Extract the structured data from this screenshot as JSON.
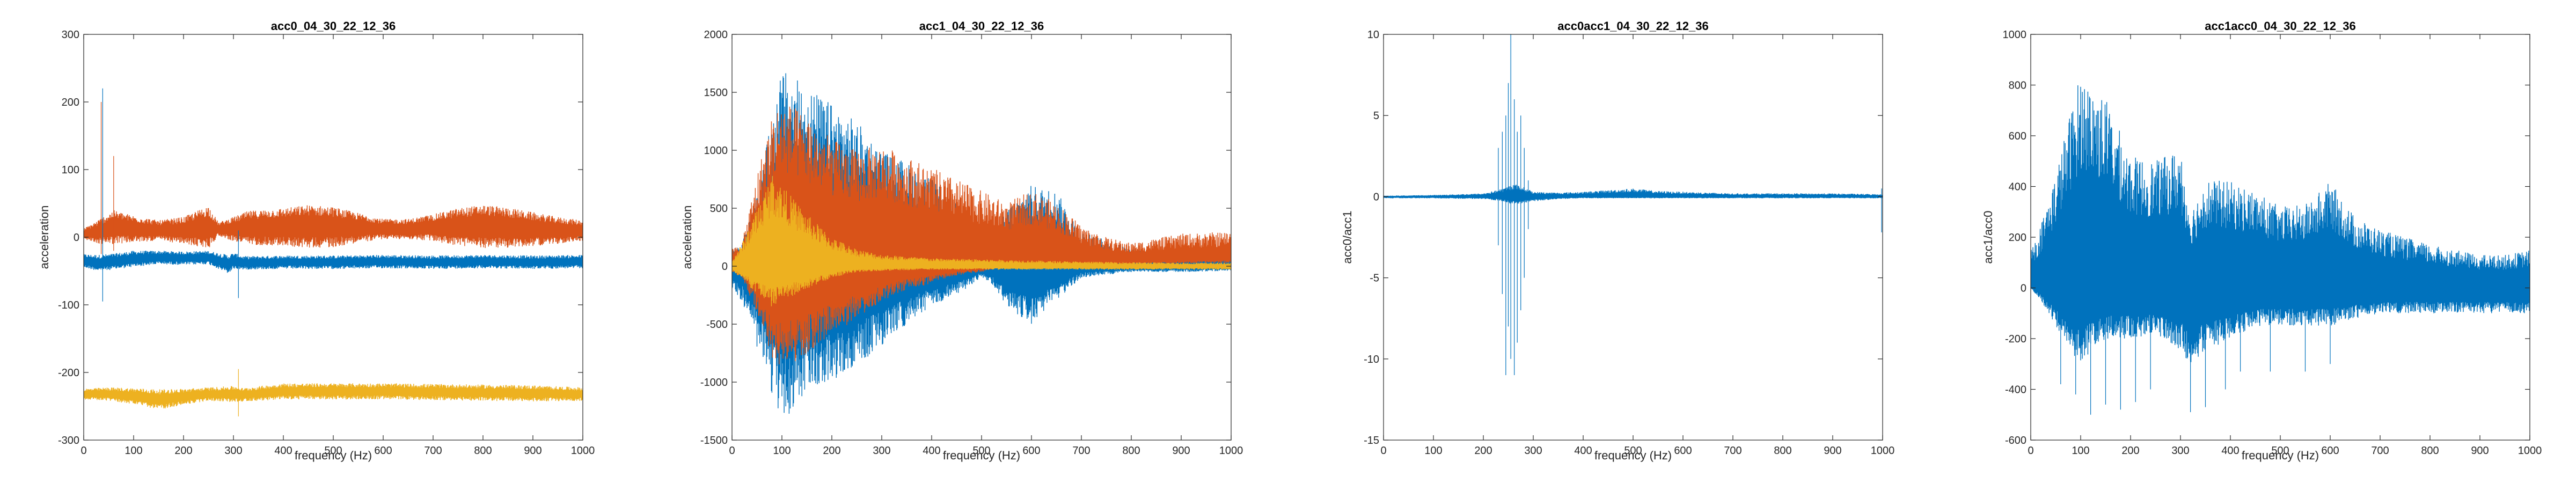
{
  "colors": {
    "series1": "#0072BD",
    "series2": "#D95319",
    "series3": "#EDB120",
    "axis": "#262626",
    "background": "#ffffff"
  },
  "chart_data": [
    {
      "type": "line",
      "title": "acc0_04_30_22_12_36",
      "xlabel": "frequency (Hz)",
      "ylabel": "acceleration",
      "xlim": [
        0,
        1000
      ],
      "ylim": [
        -300,
        300
      ],
      "xticks": [
        0,
        100,
        200,
        300,
        400,
        500,
        600,
        700,
        800,
        900,
        1000
      ],
      "yticks": [
        -300,
        -200,
        -100,
        0,
        100,
        200,
        300
      ],
      "grid": false,
      "legend": "none",
      "series": [
        {
          "color": "#0072BD",
          "style": "dense-noise",
          "x": [
            0,
            30,
            60,
            100,
            150,
            200,
            250,
            290,
            300,
            320,
            400,
            500,
            600,
            700,
            800,
            900,
            1000
          ],
          "center": [
            -35,
            -38,
            -36,
            -32,
            -30,
            -31,
            -30,
            -40,
            -35,
            -38,
            -37,
            -37,
            -36,
            -37,
            -36,
            -37,
            -36
          ],
          "half_width": [
            10,
            12,
            12,
            12,
            10,
            10,
            10,
            14,
            12,
            10,
            10,
            10,
            10,
            10,
            10,
            10,
            10
          ]
        },
        {
          "color": "#D95319",
          "style": "dense-noise",
          "x": [
            0,
            30,
            60,
            100,
            150,
            200,
            250,
            270,
            300,
            330,
            400,
            450,
            500,
            550,
            600,
            650,
            700,
            750,
            800,
            850,
            900,
            950,
            1000
          ],
          "center": [
            5,
            8,
            15,
            12,
            10,
            10,
            15,
            12,
            12,
            14,
            15,
            16,
            15,
            14,
            12,
            12,
            14,
            15,
            16,
            14,
            12,
            10,
            10
          ],
          "half_width": [
            8,
            18,
            25,
            20,
            15,
            20,
            32,
            10,
            18,
            25,
            28,
            32,
            30,
            22,
            15,
            15,
            20,
            28,
            32,
            30,
            25,
            20,
            15
          ]
        },
        {
          "color": "#EDB120",
          "style": "dense-noise",
          "x": [
            0,
            50,
            100,
            150,
            200,
            250,
            300,
            320,
            400,
            500,
            600,
            700,
            800,
            900,
            1000
          ],
          "center": [
            -232,
            -232,
            -235,
            -240,
            -236,
            -232,
            -232,
            -233,
            -228,
            -228,
            -228,
            -229,
            -230,
            -231,
            -232
          ],
          "half_width": [
            8,
            10,
            12,
            15,
            12,
            10,
            12,
            10,
            12,
            12,
            12,
            12,
            12,
            12,
            10
          ]
        }
      ],
      "spikes": [
        {
          "color": "#D95319",
          "x": 35,
          "y": [
            -25,
            200
          ]
        },
        {
          "color": "#0072BD",
          "x": 38,
          "y": [
            -95,
            220
          ]
        },
        {
          "color": "#D95319",
          "x": 60,
          "y": [
            -20,
            120
          ]
        },
        {
          "color": "#0072BD",
          "x": 310,
          "y": [
            -90,
            10
          ]
        },
        {
          "color": "#EDB120",
          "x": 310,
          "y": [
            -265,
            -195
          ]
        }
      ]
    },
    {
      "type": "line",
      "title": "acc1_04_30_22_12_36",
      "xlabel": "frequency (Hz)",
      "ylabel": "acceleration",
      "xlim": [
        0,
        1000
      ],
      "ylim": [
        -1500,
        2000
      ],
      "xticks": [
        0,
        100,
        200,
        300,
        400,
        500,
        600,
        700,
        800,
        900,
        1000
      ],
      "yticks": [
        -1500,
        -1000,
        -500,
        0,
        500,
        1000,
        1500,
        2000
      ],
      "grid": false,
      "legend": "none",
      "series": [
        {
          "color": "#0072BD",
          "style": "envelope",
          "x": [
            0,
            20,
            50,
            80,
            100,
            150,
            200,
            250,
            300,
            350,
            400,
            450,
            500,
            520,
            550,
            600,
            650,
            700,
            800,
            900,
            1000
          ],
          "upper": [
            150,
            200,
            600,
            1300,
            1700,
            1550,
            1400,
            1250,
            1000,
            900,
            750,
            550,
            350,
            200,
            500,
            700,
            650,
            300,
            150,
            150,
            120
          ],
          "lower": [
            -200,
            -300,
            -700,
            -1100,
            -1350,
            -1100,
            -1000,
            -850,
            -700,
            -500,
            -350,
            -250,
            -100,
            -150,
            -350,
            -500,
            -300,
            -100,
            -50,
            -50,
            -40
          ]
        },
        {
          "color": "#D95319",
          "style": "envelope",
          "x": [
            0,
            20,
            50,
            80,
            100,
            150,
            200,
            250,
            300,
            350,
            400,
            450,
            500,
            550,
            600,
            650,
            700,
            750,
            800,
            900,
            1000
          ],
          "upper": [
            150,
            200,
            800,
            1300,
            1450,
            1300,
            1100,
            1000,
            1050,
            950,
            850,
            750,
            650,
            550,
            650,
            550,
            350,
            250,
            200,
            280,
            300
          ],
          "lower": [
            -50,
            -100,
            -400,
            -800,
            -900,
            -750,
            -600,
            -450,
            -300,
            -200,
            -150,
            -80,
            -50,
            0,
            0,
            0,
            10,
            20,
            30,
            40,
            50
          ]
        },
        {
          "color": "#EDB120",
          "style": "envelope",
          "x": [
            0,
            20,
            50,
            80,
            100,
            150,
            200,
            250,
            300,
            400,
            500,
            600,
            700,
            800,
            900,
            1000
          ],
          "upper": [
            50,
            200,
            500,
            800,
            700,
            450,
            250,
            150,
            100,
            70,
            60,
            50,
            40,
            35,
            30,
            30
          ],
          "lower": [
            -50,
            -100,
            -250,
            -350,
            -300,
            -200,
            -100,
            -50,
            -40,
            -30,
            -30,
            -30,
            -30,
            -30,
            -30,
            -30
          ]
        }
      ],
      "spikes": []
    },
    {
      "type": "line",
      "title": "acc0acc1_04_30_22_12_36",
      "xlabel": "frequency (Hz)",
      "ylabel": "acc0/acc1",
      "xlim": [
        0,
        1000
      ],
      "ylim": [
        -15,
        10
      ],
      "xticks": [
        0,
        100,
        200,
        300,
        400,
        500,
        600,
        700,
        800,
        900,
        1000
      ],
      "yticks": [
        -15,
        -10,
        -5,
        0,
        5,
        10
      ],
      "grid": false,
      "legend": "none",
      "series": [
        {
          "color": "#0072BD",
          "style": "envelope",
          "x": [
            0,
            100,
            200,
            240,
            260,
            280,
            300,
            350,
            400,
            450,
            500,
            550,
            600,
            700,
            800,
            900,
            1000
          ],
          "upper": [
            0.05,
            0.1,
            0.2,
            0.5,
            0.8,
            0.6,
            0.3,
            0.25,
            0.3,
            0.4,
            0.5,
            0.35,
            0.3,
            0.2,
            0.2,
            0.2,
            0.15
          ],
          "lower": [
            -0.1,
            -0.1,
            -0.15,
            -0.3,
            -0.5,
            -0.4,
            -0.3,
            -0.15,
            -0.1,
            -0.1,
            -0.1,
            -0.1,
            -0.1,
            -0.1,
            -0.1,
            -0.1,
            -0.1
          ]
        }
      ],
      "spikes": [
        {
          "color": "#0072BD",
          "x": 230,
          "y": [
            -3,
            3
          ]
        },
        {
          "color": "#0072BD",
          "x": 238,
          "y": [
            -6,
            4
          ]
        },
        {
          "color": "#0072BD",
          "x": 245,
          "y": [
            -11,
            5
          ]
        },
        {
          "color": "#0072BD",
          "x": 250,
          "y": [
            -8,
            7
          ]
        },
        {
          "color": "#0072BD",
          "x": 255,
          "y": [
            -10,
            10
          ]
        },
        {
          "color": "#0072BD",
          "x": 262,
          "y": [
            -11,
            6
          ]
        },
        {
          "color": "#0072BD",
          "x": 268,
          "y": [
            -9,
            4
          ]
        },
        {
          "color": "#0072BD",
          "x": 275,
          "y": [
            -7,
            5
          ]
        },
        {
          "color": "#0072BD",
          "x": 282,
          "y": [
            -5,
            3
          ]
        },
        {
          "color": "#0072BD",
          "x": 290,
          "y": [
            -2,
            1
          ]
        },
        {
          "color": "#0072BD",
          "x": 998,
          "y": [
            -2.2,
            0.5
          ]
        }
      ]
    },
    {
      "type": "line",
      "title": "acc1acc0_04_30_22_12_36",
      "xlabel": "frequency (Hz)",
      "ylabel": "acc1/acc0",
      "xlim": [
        0,
        1000
      ],
      "ylim": [
        -600,
        1000
      ],
      "xticks": [
        0,
        100,
        200,
        300,
        400,
        500,
        600,
        700,
        800,
        900,
        1000
      ],
      "yticks": [
        -600,
        -400,
        -200,
        0,
        200,
        400,
        600,
        800,
        1000
      ],
      "grid": false,
      "legend": "none",
      "series": [
        {
          "color": "#0072BD",
          "style": "envelope",
          "x": [
            0,
            20,
            50,
            80,
            100,
            120,
            150,
            200,
            250,
            300,
            320,
            350,
            400,
            450,
            500,
            550,
            600,
            650,
            700,
            750,
            800,
            850,
            900,
            950,
            1000
          ],
          "upper": [
            150,
            250,
            450,
            700,
            850,
            800,
            750,
            520,
            500,
            550,
            300,
            430,
            420,
            380,
            320,
            330,
            420,
            280,
            230,
            200,
            170,
            150,
            130,
            130,
            150
          ],
          "lower": [
            0,
            -50,
            -150,
            -250,
            -300,
            -250,
            -200,
            -200,
            -180,
            -250,
            -300,
            -250,
            -200,
            -150,
            -150,
            -150,
            -150,
            -120,
            -100,
            -100,
            -100,
            -100,
            -100,
            -100,
            -100
          ]
        }
      ],
      "spikes": [
        {
          "color": "#0072BD",
          "x": 60,
          "y": [
            -380,
            0
          ]
        },
        {
          "color": "#0072BD",
          "x": 90,
          "y": [
            -420,
            0
          ]
        },
        {
          "color": "#0072BD",
          "x": 120,
          "y": [
            -500,
            0
          ]
        },
        {
          "color": "#0072BD",
          "x": 150,
          "y": [
            -460,
            0
          ]
        },
        {
          "color": "#0072BD",
          "x": 180,
          "y": [
            -480,
            0
          ]
        },
        {
          "color": "#0072BD",
          "x": 210,
          "y": [
            -450,
            0
          ]
        },
        {
          "color": "#0072BD",
          "x": 240,
          "y": [
            -400,
            0
          ]
        },
        {
          "color": "#0072BD",
          "x": 320,
          "y": [
            -490,
            0
          ]
        },
        {
          "color": "#0072BD",
          "x": 350,
          "y": [
            -470,
            0
          ]
        },
        {
          "color": "#0072BD",
          "x": 390,
          "y": [
            -400,
            0
          ]
        },
        {
          "color": "#0072BD",
          "x": 420,
          "y": [
            -330,
            0
          ]
        },
        {
          "color": "#0072BD",
          "x": 480,
          "y": [
            -330,
            0
          ]
        },
        {
          "color": "#0072BD",
          "x": 550,
          "y": [
            -330,
            0
          ]
        },
        {
          "color": "#0072BD",
          "x": 600,
          "y": [
            -300,
            0
          ]
        }
      ]
    }
  ]
}
